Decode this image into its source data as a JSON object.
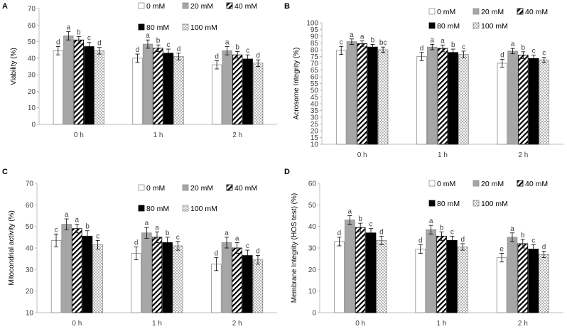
{
  "figure": {
    "legend_entries": [
      "0 mM",
      "20 mM",
      "40 mM",
      "80 mM",
      "100 mM"
    ]
  },
  "chart_data": [
    {
      "panel": "A",
      "type": "bar",
      "ylabel": "Viability (%)",
      "ylim": [
        0,
        70
      ],
      "ytick_step": 10,
      "categories": [
        "0 h",
        "1 h",
        "2 h"
      ],
      "series": [
        {
          "name": "0 mM",
          "values": [
            44.5,
            40.0,
            36.0
          ],
          "errors": [
            2.5,
            2.5,
            2.5
          ],
          "letters": [
            "d",
            "d",
            "d"
          ]
        },
        {
          "name": "20 mM",
          "values": [
            53.5,
            48.5,
            44.5
          ],
          "errors": [
            2.5,
            2.5,
            2.5
          ],
          "letters": [
            "a",
            "a",
            "a"
          ]
        },
        {
          "name": "40 mM",
          "values": [
            51.0,
            46.0,
            42.0
          ],
          "errors": [
            2.0,
            2.0,
            2.0
          ],
          "letters": [
            "b",
            "b",
            "b"
          ]
        },
        {
          "name": "80 mM",
          "values": [
            47.0,
            43.0,
            39.5
          ],
          "errors": [
            2.5,
            2.5,
            2.5
          ],
          "letters": [
            "c",
            "c",
            "c"
          ]
        },
        {
          "name": "100 mM",
          "values": [
            44.5,
            41.0,
            37.0
          ],
          "errors": [
            2.0,
            2.0,
            2.0
          ],
          "letters": [
            "d",
            "d",
            "d"
          ]
        }
      ]
    },
    {
      "panel": "B",
      "type": "bar",
      "ylabel": "Acrosome Integrity (%)",
      "ylim": [
        10,
        100
      ],
      "ytick_step": 5,
      "categories": [
        "0 h",
        "1 h",
        "2 h"
      ],
      "series": [
        {
          "name": "0 mM",
          "values": [
            79.5,
            75.0,
            70.0
          ],
          "errors": [
            3.0,
            3.0,
            3.0
          ],
          "letters": [
            "c",
            "d",
            "d"
          ]
        },
        {
          "name": "20 mM",
          "values": [
            86.0,
            82.0,
            79.0
          ],
          "errors": [
            2.0,
            2.0,
            2.0
          ],
          "letters": [
            "a",
            "a",
            "a"
          ]
        },
        {
          "name": "40 mM",
          "values": [
            84.5,
            81.0,
            76.0
          ],
          "errors": [
            2.0,
            2.5,
            2.5
          ],
          "letters": [
            "a",
            "a",
            "b"
          ]
        },
        {
          "name": "80 mM",
          "values": [
            82.0,
            78.0,
            73.5
          ],
          "errors": [
            2.0,
            2.5,
            2.5
          ],
          "letters": [
            "b",
            "b",
            "c"
          ]
        },
        {
          "name": "100 mM",
          "values": [
            80.0,
            76.5,
            72.5
          ],
          "errors": [
            2.0,
            2.5,
            2.0
          ],
          "letters": [
            "bc",
            "c",
            "c"
          ]
        }
      ]
    },
    {
      "panel": "C",
      "type": "bar",
      "ylabel": "Mitocondrial activity (%)",
      "ylim": [
        10,
        70
      ],
      "ytick_step": 10,
      "categories": [
        "0 h",
        "1 h",
        "2 h"
      ],
      "series": [
        {
          "name": "0 mM",
          "values": [
            43.5,
            37.5,
            32.5
          ],
          "errors": [
            3.0,
            3.0,
            3.0
          ],
          "letters": [
            "c",
            "d",
            "d"
          ]
        },
        {
          "name": "20 mM",
          "values": [
            51.0,
            47.0,
            42.5
          ],
          "errors": [
            2.5,
            2.5,
            2.5
          ],
          "letters": [
            "a",
            "a",
            "a"
          ]
        },
        {
          "name": "40 mM",
          "values": [
            49.0,
            45.0,
            40.0
          ],
          "errors": [
            2.0,
            2.5,
            2.5
          ],
          "letters": [
            "a",
            "a",
            "a"
          ]
        },
        {
          "name": "80 mM",
          "values": [
            45.5,
            42.5,
            36.5
          ],
          "errors": [
            2.5,
            2.5,
            2.5
          ],
          "letters": [
            "b",
            "b",
            "c"
          ]
        },
        {
          "name": "100 mM",
          "values": [
            41.5,
            41.0,
            34.5
          ],
          "errors": [
            2.0,
            2.0,
            2.0
          ],
          "letters": [
            "c",
            "c",
            "d"
          ]
        }
      ]
    },
    {
      "panel": "D",
      "type": "bar",
      "ylabel": "Membrane Integrity (HOS test) (%)",
      "ylim": [
        0,
        60
      ],
      "ytick_step": 10,
      "categories": [
        "0 h",
        "1 h",
        "2 h"
      ],
      "series": [
        {
          "name": "0 mM",
          "values": [
            33.0,
            29.5,
            25.5
          ],
          "errors": [
            2.0,
            2.0,
            2.0
          ],
          "letters": [
            "d",
            "d",
            "e"
          ]
        },
        {
          "name": "20 mM",
          "values": [
            43.0,
            38.5,
            35.0
          ],
          "errors": [
            2.0,
            2.0,
            2.0
          ],
          "letters": [
            "a",
            "a",
            "a"
          ]
        },
        {
          "name": "40 mM",
          "values": [
            39.5,
            35.5,
            32.0
          ],
          "errors": [
            2.0,
            2.0,
            2.0
          ],
          "letters": [
            "b",
            "b",
            "b"
          ]
        },
        {
          "name": "80 mM",
          "values": [
            37.0,
            33.5,
            29.5
          ],
          "errors": [
            2.0,
            2.0,
            2.0
          ],
          "letters": [
            "c",
            "c",
            "c"
          ]
        },
        {
          "name": "100 mM",
          "values": [
            33.5,
            30.5,
            27.0
          ],
          "errors": [
            2.0,
            1.5,
            1.5
          ],
          "letters": [
            "d",
            "d",
            "d"
          ]
        }
      ]
    }
  ]
}
